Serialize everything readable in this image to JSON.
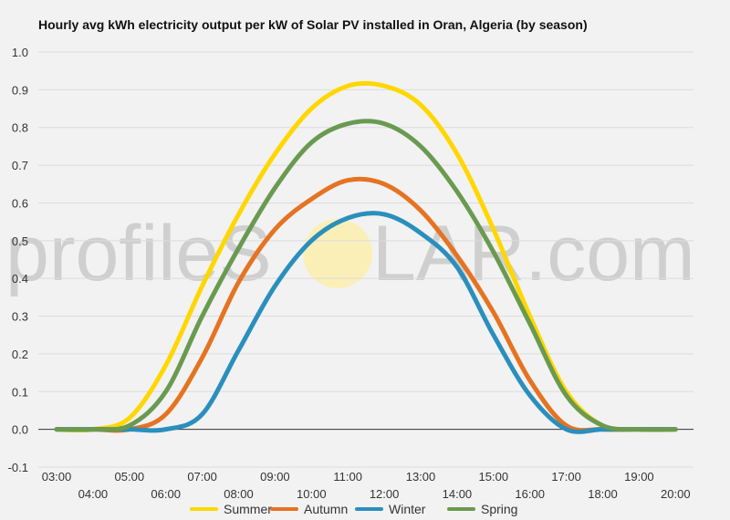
{
  "watermark": {
    "text": "profileS",
    "text2": "LAR.com"
  },
  "chart_data": {
    "type": "line",
    "title": "Hourly avg kWh electricity output per kW of Solar PV installed in Oran, Algeria (by season)",
    "xlabel": "",
    "ylabel": "",
    "x": [
      "03:00",
      "04:00",
      "05:00",
      "06:00",
      "07:00",
      "08:00",
      "09:00",
      "10:00",
      "11:00",
      "12:00",
      "13:00",
      "14:00",
      "15:00",
      "16:00",
      "17:00",
      "18:00",
      "19:00",
      "20:00"
    ],
    "ylim": [
      -0.1,
      1.0
    ],
    "yticks": [
      "-0.1",
      "0.0",
      "0.1",
      "0.2",
      "0.3",
      "0.4",
      "0.5",
      "0.6",
      "0.7",
      "0.8",
      "0.9",
      "1.0"
    ],
    "grid": true,
    "legend_position": "bottom",
    "series": [
      {
        "name": "Summer",
        "color": "#ffd700",
        "values": [
          0.0,
          0.0,
          0.03,
          0.17,
          0.38,
          0.57,
          0.73,
          0.85,
          0.91,
          0.91,
          0.86,
          0.73,
          0.53,
          0.3,
          0.1,
          0.01,
          0.0,
          0.0
        ]
      },
      {
        "name": "Autumn",
        "color": "#e57322",
        "values": [
          0.0,
          0.0,
          0.0,
          0.04,
          0.19,
          0.39,
          0.53,
          0.61,
          0.66,
          0.65,
          0.58,
          0.46,
          0.31,
          0.13,
          0.01,
          0.0,
          0.0,
          0.0
        ]
      },
      {
        "name": "Winter",
        "color": "#2a8fbd",
        "values": [
          0.0,
          0.0,
          0.0,
          0.0,
          0.04,
          0.21,
          0.38,
          0.5,
          0.56,
          0.57,
          0.52,
          0.43,
          0.25,
          0.09,
          0.0,
          0.0,
          0.0,
          0.0
        ]
      },
      {
        "name": "Spring",
        "color": "#6a9a50",
        "values": [
          0.0,
          0.0,
          0.01,
          0.1,
          0.3,
          0.48,
          0.64,
          0.76,
          0.81,
          0.81,
          0.75,
          0.63,
          0.47,
          0.28,
          0.09,
          0.01,
          0.0,
          0.0
        ]
      }
    ]
  }
}
